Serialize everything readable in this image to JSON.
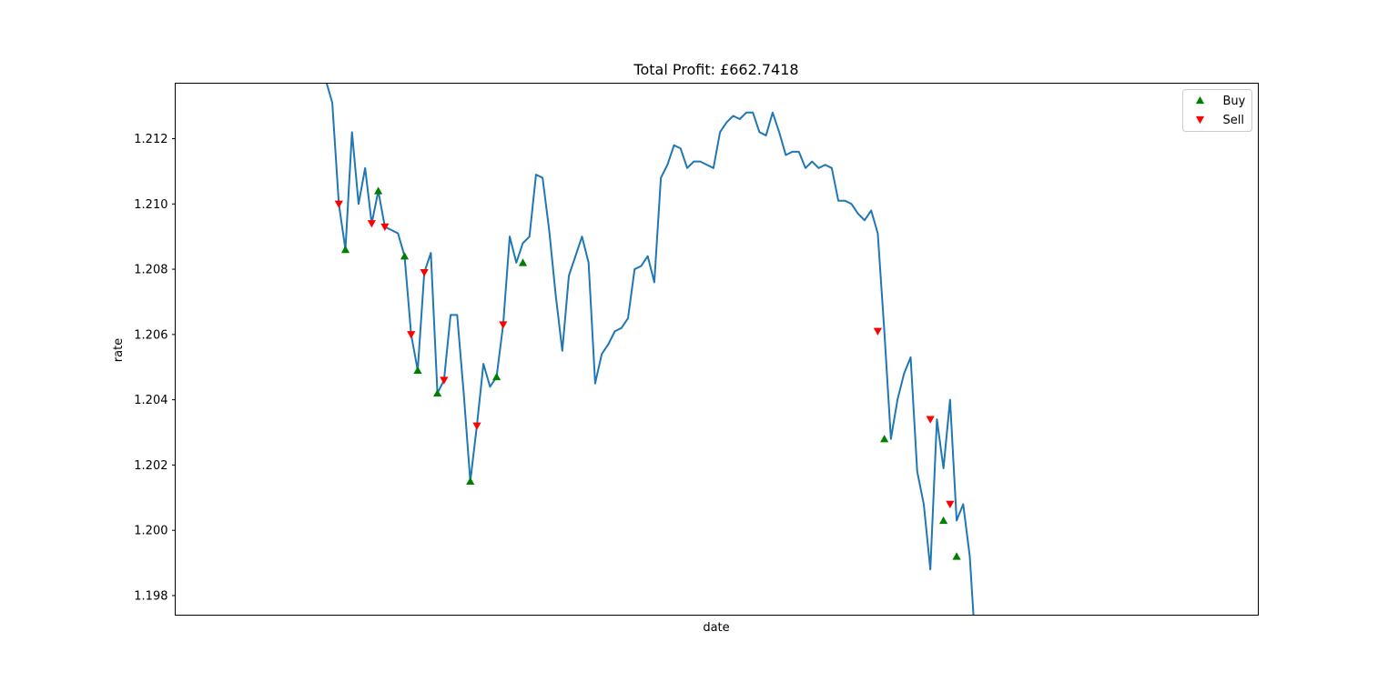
{
  "chart_data": {
    "type": "line",
    "title": "Total Profit: £662.7418",
    "xlabel": "date",
    "ylabel": "rate",
    "ylim": [
      1.1974,
      1.2137
    ],
    "xlim": [
      -22.9,
      141.9
    ],
    "yticks": [
      "1.198",
      "1.200",
      "1.202",
      "1.204",
      "1.206",
      "1.208",
      "1.210",
      "1.212"
    ],
    "ytick_values": [
      1.198,
      1.2,
      1.202,
      1.204,
      1.206,
      1.208,
      1.21,
      1.212
    ],
    "grid": false,
    "legend_position": "top-right",
    "colors": {
      "line": "#1f77b4",
      "buy": "#008000",
      "sell": "#ff0000"
    },
    "series": [
      {
        "name": "rate",
        "y": [
          1.2138,
          1.2131,
          1.21,
          1.2086,
          1.2122,
          1.21,
          1.2111,
          1.2094,
          1.2104,
          1.2093,
          1.2092,
          1.2091,
          1.2084,
          1.206,
          1.2049,
          1.2079,
          1.2085,
          1.2042,
          1.2046,
          1.2066,
          1.2066,
          1.2042,
          1.2015,
          1.2032,
          1.2051,
          1.2044,
          1.2047,
          1.2063,
          1.209,
          1.2082,
          1.2088,
          1.209,
          1.2109,
          1.2108,
          1.2092,
          1.2072,
          1.2055,
          1.2078,
          1.2084,
          1.209,
          1.2082,
          1.2045,
          1.2054,
          1.2057,
          1.2061,
          1.2062,
          1.2065,
          1.208,
          1.2081,
          1.2084,
          1.2076,
          1.2108,
          1.2112,
          1.2118,
          1.2117,
          1.2111,
          1.2113,
          1.2113,
          1.2112,
          1.2111,
          1.2122,
          1.2125,
          1.2127,
          1.2126,
          1.2128,
          1.2128,
          1.2122,
          1.2121,
          1.2128,
          1.2122,
          1.2115,
          1.2116,
          1.2116,
          1.2111,
          1.2113,
          1.2111,
          1.2112,
          1.2111,
          1.2101,
          1.2101,
          1.21,
          1.2097,
          1.2095,
          1.2098,
          1.2091,
          1.2061,
          1.2028,
          1.204,
          1.2048,
          1.2053,
          1.2018,
          1.2008,
          1.1988,
          1.2034,
          1.2019,
          1.204,
          1.2003,
          1.2008,
          1.1992,
          1.196
        ]
      },
      {
        "name": "Buy",
        "x": [
          3,
          8,
          12,
          14,
          17,
          22,
          26,
          30,
          85,
          94,
          96
        ],
        "y": [
          1.2086,
          1.2104,
          1.2084,
          1.2049,
          1.2042,
          1.2015,
          1.2047,
          1.2082,
          1.2028,
          1.2003,
          1.1992
        ]
      },
      {
        "name": "Sell",
        "x": [
          2,
          7,
          9,
          13,
          15,
          18,
          23,
          27,
          84,
          92,
          95
        ],
        "y": [
          1.21,
          1.2094,
          1.2093,
          1.206,
          1.2079,
          1.2046,
          1.2032,
          1.2063,
          1.2061,
          1.2034,
          1.2008
        ]
      }
    ]
  }
}
